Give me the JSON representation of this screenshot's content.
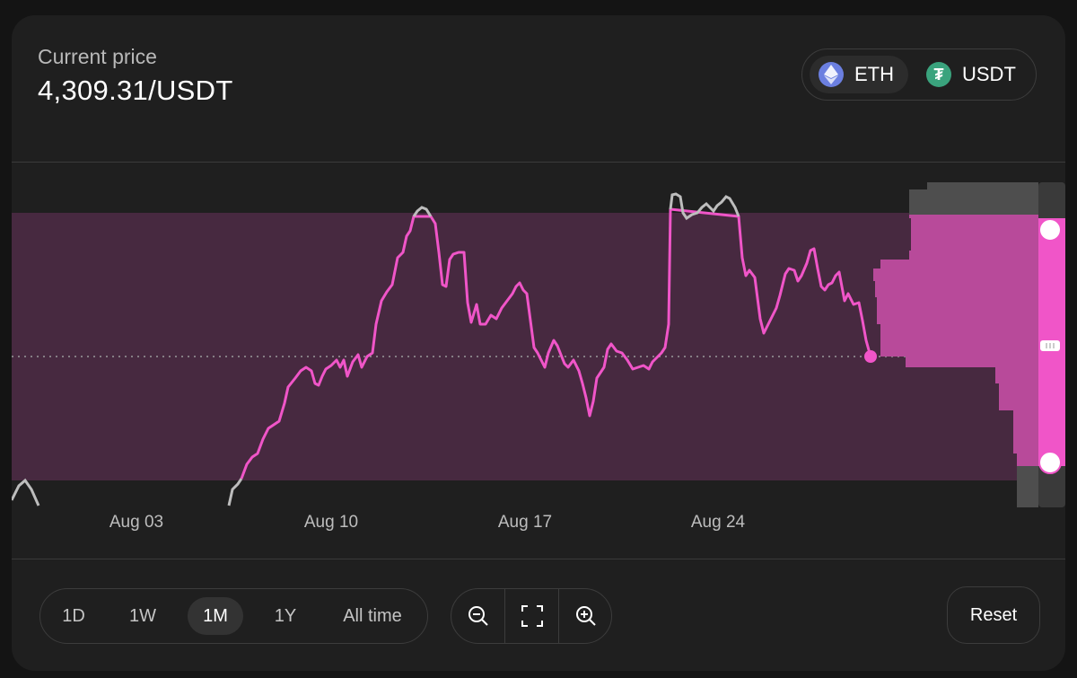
{
  "header": {
    "price_label": "Current price",
    "price_value": "4,309.31/USDT"
  },
  "pair": {
    "base": {
      "symbol": "ETH",
      "icon": "ethereum-icon",
      "color": "#6b7fe0",
      "selected": true
    },
    "quote": {
      "symbol": "USDT",
      "icon": "tether-icon",
      "color": "#3aa37d",
      "selected": false
    }
  },
  "chart_data": {
    "type": "line",
    "x_ticks": [
      "Aug 03",
      "Aug 10",
      "Aug 17",
      "Aug 24"
    ],
    "series_color": "#f055c8",
    "out_of_range_color": "#bdbdbd",
    "range_band_color": "#4a2a42",
    "current_price": 4309.31,
    "grid": false
  },
  "range_buttons": [
    {
      "label": "1D",
      "active": false
    },
    {
      "label": "1W",
      "active": false
    },
    {
      "label": "1M",
      "active": true
    },
    {
      "label": "1Y",
      "active": false
    },
    {
      "label": "All time",
      "active": false
    }
  ],
  "zoom": {
    "zoom_out_icon": "zoom-out-icon",
    "fit_icon": "fit-screen-icon",
    "zoom_in_icon": "zoom-in-icon"
  },
  "reset_label": "Reset"
}
